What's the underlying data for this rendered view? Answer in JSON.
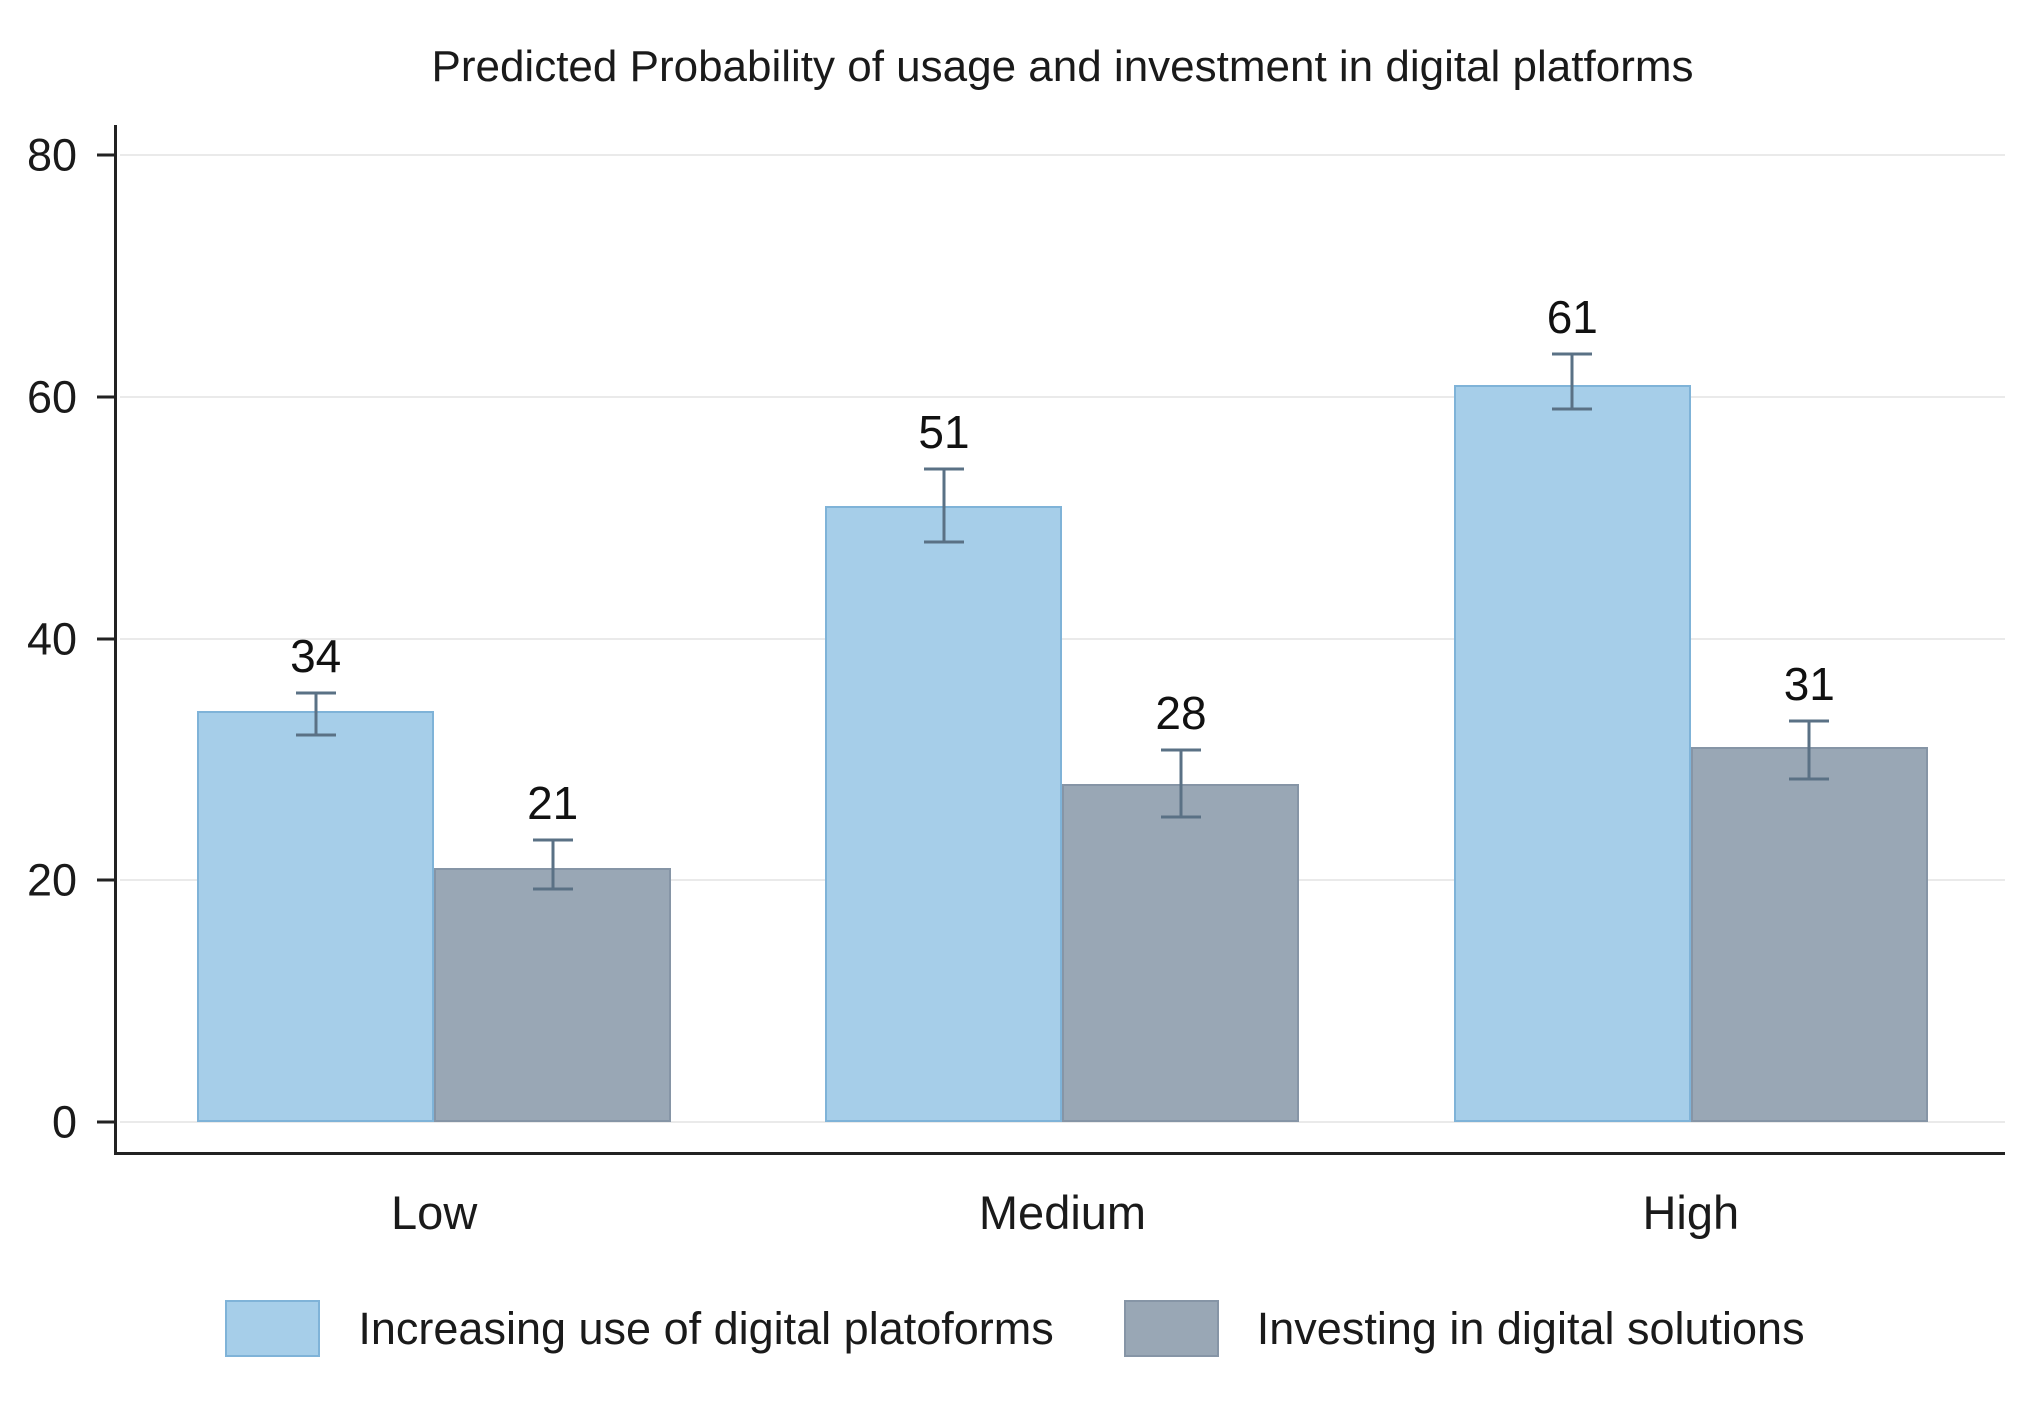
{
  "title": "Predicted Probability of usage and investment in digital platforms",
  "chart_data": {
    "type": "bar",
    "title": "Predicted Probability of usage and investment in digital platforms",
    "categories": [
      "Low",
      "Medium",
      "High"
    ],
    "series": [
      {
        "name": "Increasing use of digital platoforms",
        "color": "#A6CEE9",
        "border": "#7FB3D8",
        "values": [
          34,
          51,
          61
        ],
        "ci_low": [
          32,
          48,
          59
        ],
        "ci_high": [
          35.5,
          54,
          63.5
        ]
      },
      {
        "name": "Investing in digital solutions",
        "color": "#99A7B5",
        "border": "#8695A6",
        "values": [
          21,
          28,
          31
        ],
        "ci_low": [
          19.3,
          25.2,
          28.4
        ],
        "ci_high": [
          23.3,
          30.8,
          33.2
        ]
      }
    ],
    "xlabel": "",
    "ylabel": "",
    "ylim": [
      0,
      80
    ],
    "yticks": [
      0,
      20,
      40,
      60,
      80
    ],
    "grid": true,
    "legend_position": "bottom",
    "error_bar_color": "#5A7185"
  }
}
